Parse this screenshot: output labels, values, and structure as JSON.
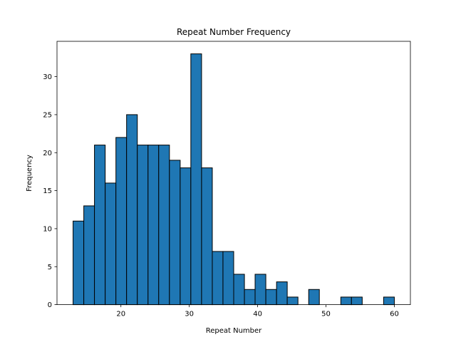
{
  "chart_data": {
    "type": "bar",
    "title": "Repeat Number Frequency",
    "xlabel": "Repeat Number",
    "ylabel": "Frequency",
    "xlim": [
      10.65,
      62.35
    ],
    "ylim": [
      0,
      34.65
    ],
    "xticks": [
      20,
      30,
      40,
      50,
      60
    ],
    "yticks": [
      0,
      5,
      10,
      15,
      20,
      25,
      30
    ],
    "bar_color": "#1f77b4",
    "edge_color": "#000000",
    "grid": false,
    "bins": [
      {
        "x0": 13.0,
        "x1": 14.57,
        "value": 11
      },
      {
        "x0": 14.57,
        "x1": 16.13,
        "value": 13
      },
      {
        "x0": 16.13,
        "x1": 17.7,
        "value": 21
      },
      {
        "x0": 17.7,
        "x1": 19.27,
        "value": 16
      },
      {
        "x0": 19.27,
        "x1": 20.83,
        "value": 22
      },
      {
        "x0": 20.83,
        "x1": 22.4,
        "value": 25
      },
      {
        "x0": 22.4,
        "x1": 23.97,
        "value": 21
      },
      {
        "x0": 23.97,
        "x1": 25.53,
        "value": 21
      },
      {
        "x0": 25.53,
        "x1": 27.1,
        "value": 21
      },
      {
        "x0": 27.1,
        "x1": 28.67,
        "value": 19
      },
      {
        "x0": 28.67,
        "x1": 30.23,
        "value": 18
      },
      {
        "x0": 30.23,
        "x1": 31.8,
        "value": 33
      },
      {
        "x0": 31.8,
        "x1": 33.37,
        "value": 18
      },
      {
        "x0": 33.37,
        "x1": 34.93,
        "value": 7
      },
      {
        "x0": 34.93,
        "x1": 36.5,
        "value": 7
      },
      {
        "x0": 36.5,
        "x1": 38.07,
        "value": 4
      },
      {
        "x0": 38.07,
        "x1": 39.63,
        "value": 2
      },
      {
        "x0": 39.63,
        "x1": 41.2,
        "value": 4
      },
      {
        "x0": 41.2,
        "x1": 42.77,
        "value": 2
      },
      {
        "x0": 42.77,
        "x1": 44.33,
        "value": 3
      },
      {
        "x0": 44.33,
        "x1": 45.9,
        "value": 1
      },
      {
        "x0": 45.9,
        "x1": 47.47,
        "value": 0
      },
      {
        "x0": 47.47,
        "x1": 49.03,
        "value": 2
      },
      {
        "x0": 49.03,
        "x1": 50.6,
        "value": 0
      },
      {
        "x0": 50.6,
        "x1": 52.17,
        "value": 0
      },
      {
        "x0": 52.17,
        "x1": 53.73,
        "value": 1
      },
      {
        "x0": 53.73,
        "x1": 55.3,
        "value": 1
      },
      {
        "x0": 55.3,
        "x1": 56.87,
        "value": 0
      },
      {
        "x0": 56.87,
        "x1": 58.43,
        "value": 0
      },
      {
        "x0": 58.43,
        "x1": 60.0,
        "value": 1
      }
    ]
  }
}
